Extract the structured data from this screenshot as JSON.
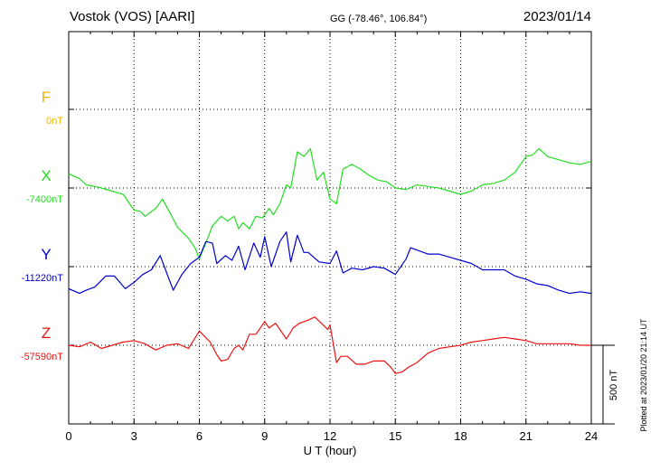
{
  "header": {
    "title": "Vostok (VOS)  [AARI]",
    "coords": "GG (-78.46°, 106.84°)",
    "date": "2023/01/14"
  },
  "footer": {
    "plotted": "Plotted at 2023/01/20 21:14 UT",
    "scale": "500 nT"
  },
  "chart_data": {
    "type": "line",
    "title": "Vostok (VOS)  [AARI]",
    "xlabel": "U T (hour)",
    "ylabel": "",
    "xlim": [
      0,
      24
    ],
    "x_ticks": [
      "0",
      "3",
      "6",
      "9",
      "12",
      "15",
      "18",
      "21",
      "24"
    ],
    "units_per_division_nT": 500,
    "grid": true,
    "series": [
      {
        "name": "F",
        "baseline": "0nT",
        "color": "#f5b400",
        "offset_nT": 1500,
        "x": [],
        "values": []
      },
      {
        "name": "X",
        "baseline": "-7400nT",
        "color": "#22dd22",
        "offset_nT": 1000,
        "x": [
          0,
          0.5,
          0.8,
          1.2,
          1.5,
          2,
          2.5,
          2.8,
          3,
          3.3,
          3.5,
          4,
          4.3,
          4.5,
          4.7,
          5,
          5.5,
          5.8,
          6,
          6.3,
          6.6,
          7,
          7.3,
          7.6,
          7.8,
          8,
          8.3,
          8.6,
          8.9,
          9.2,
          9.4,
          9.7,
          10,
          10.2,
          10.5,
          10.8,
          11.1,
          11.4,
          11.7,
          12,
          12.3,
          12.6,
          13,
          13.4,
          13.8,
          14.2,
          14.6,
          15,
          15.5,
          16,
          16.5,
          17,
          17.5,
          18,
          18.5,
          19,
          19.5,
          20,
          20.5,
          21,
          21.3,
          21.6,
          22,
          22.5,
          23,
          23.5,
          24
        ],
        "values": [
          90,
          60,
          20,
          10,
          0,
          -20,
          -40,
          -100,
          -140,
          -150,
          -180,
          -130,
          -70,
          -120,
          -170,
          -250,
          -320,
          -380,
          -450,
          -350,
          -240,
          -180,
          -210,
          -180,
          -260,
          -220,
          -260,
          -180,
          -190,
          -130,
          -170,
          -100,
          20,
          0,
          230,
          200,
          250,
          50,
          100,
          -70,
          -100,
          120,
          150,
          120,
          80,
          50,
          40,
          0,
          -10,
          20,
          10,
          0,
          -20,
          -40,
          -20,
          20,
          30,
          50,
          100,
          200,
          210,
          250,
          200,
          180,
          160,
          150,
          170
        ]
      },
      {
        "name": "Y",
        "baseline": "-11220nT",
        "color": "#0000cc",
        "offset_nT": 500,
        "x": [
          0,
          0.5,
          0.8,
          1.2,
          1.7,
          2.1,
          2.6,
          3,
          3.4,
          3.8,
          4.2,
          4.5,
          4.8,
          5.2,
          5.6,
          6,
          6.3,
          6.6,
          6.8,
          7.2,
          7.5,
          7.8,
          8.1,
          8.5,
          8.8,
          9,
          9.3,
          9.7,
          10,
          10.2,
          10.5,
          10.8,
          11,
          11.5,
          12,
          12.3,
          12.6,
          13,
          13.5,
          14,
          14.5,
          15,
          15.5,
          15.7,
          16.1,
          16.5,
          17,
          17.5,
          18,
          18.5,
          19,
          19.5,
          20,
          20.5,
          21,
          21.5,
          22,
          22.5,
          23,
          23.5,
          24
        ],
        "values": [
          -140,
          -170,
          -150,
          -130,
          -60,
          -60,
          -140,
          -100,
          -50,
          -20,
          70,
          -40,
          -150,
          -50,
          20,
          60,
          160,
          150,
          20,
          70,
          40,
          130,
          -20,
          150,
          60,
          190,
          0,
          160,
          220,
          30,
          200,
          90,
          90,
          30,
          20,
          100,
          -40,
          -10,
          -20,
          0,
          -10,
          -50,
          50,
          120,
          100,
          80,
          80,
          60,
          40,
          20,
          -20,
          -20,
          -20,
          -60,
          -80,
          -110,
          -120,
          -150,
          -170,
          -160,
          -170
        ]
      },
      {
        "name": "Z",
        "baseline": "-57590nT",
        "color": "#ee1111",
        "offset_nT": 0,
        "x": [
          0,
          0.5,
          1,
          1.5,
          2,
          2.5,
          3,
          3.5,
          4,
          4.5,
          5,
          5.5,
          6,
          6.5,
          6.8,
          7,
          7.3,
          7.6,
          7.8,
          8,
          8.3,
          8.6,
          9,
          9.2,
          9.5,
          10,
          10.3,
          10.6,
          11,
          11.3,
          11.6,
          11.9,
          12,
          12.3,
          12.5,
          12.8,
          13.2,
          13.6,
          14,
          14.5,
          14.8,
          15,
          15.3,
          15.6,
          16,
          16.5,
          17,
          17.5,
          18,
          18.5,
          19,
          19.5,
          20,
          20.5,
          21,
          21.5,
          22,
          22.5,
          23,
          23.5,
          24
        ],
        "values": [
          0,
          -10,
          20,
          -20,
          0,
          20,
          30,
          10,
          -30,
          0,
          10,
          -20,
          90,
          20,
          -60,
          -100,
          -90,
          -20,
          0,
          -30,
          70,
          70,
          150,
          110,
          140,
          40,
          110,
          140,
          160,
          180,
          140,
          100,
          130,
          -110,
          -70,
          -70,
          -120,
          -120,
          -100,
          -100,
          -140,
          -180,
          -170,
          -140,
          -110,
          -50,
          -20,
          -10,
          0,
          20,
          30,
          40,
          50,
          40,
          30,
          10,
          10,
          10,
          10,
          0,
          0
        ]
      }
    ]
  }
}
